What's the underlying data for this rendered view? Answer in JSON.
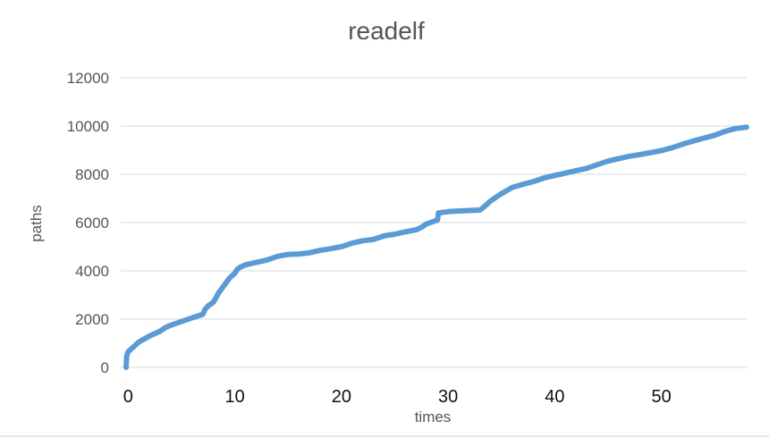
{
  "chart_data": {
    "type": "line",
    "title": "readelf",
    "xlabel": "times",
    "ylabel": "paths",
    "ylim": [
      0,
      12000
    ],
    "xlim": [
      -0.7,
      58
    ],
    "yticks": [
      "0",
      "2000",
      "4000",
      "6000",
      "8000",
      "10000",
      "12000"
    ],
    "xticks": [
      "0",
      "10",
      "20",
      "30",
      "40",
      "50"
    ],
    "grid": "horizontal",
    "legend": "none",
    "color": "#5b9bd5",
    "series": [
      {
        "x": [
          -0.2,
          -0.15,
          0,
          0.5,
          1,
          2,
          3,
          3.5,
          4,
          5,
          6,
          7,
          7.2,
          7.5,
          8,
          8.5,
          9,
          9.5,
          10,
          10.2,
          10.5,
          11,
          12,
          13,
          14,
          15,
          16,
          17,
          18,
          19,
          20,
          21,
          22,
          23,
          24,
          25,
          26,
          27,
          27.5,
          28,
          29,
          29.1,
          30,
          31,
          32,
          33,
          33.5,
          34,
          35,
          36,
          37,
          38,
          39,
          40,
          41,
          42,
          43,
          44,
          45,
          46,
          47,
          48,
          49,
          50,
          51,
          52,
          53,
          54,
          55,
          56,
          57,
          58
        ],
        "y": [
          0,
          450,
          650,
          850,
          1050,
          1300,
          1500,
          1650,
          1750,
          1900,
          2050,
          2200,
          2400,
          2550,
          2700,
          3100,
          3400,
          3700,
          3900,
          4050,
          4150,
          4250,
          4350,
          4450,
          4600,
          4680,
          4700,
          4750,
          4850,
          4920,
          5000,
          5150,
          5250,
          5300,
          5450,
          5520,
          5620,
          5700,
          5800,
          5950,
          6100,
          6400,
          6450,
          6480,
          6500,
          6520,
          6700,
          6900,
          7200,
          7450,
          7580,
          7700,
          7850,
          7950,
          8050,
          8150,
          8250,
          8400,
          8550,
          8650,
          8750,
          8820,
          8900,
          8980,
          9100,
          9250,
          9380,
          9500,
          9620,
          9780,
          9900,
          9950
        ]
      }
    ]
  }
}
